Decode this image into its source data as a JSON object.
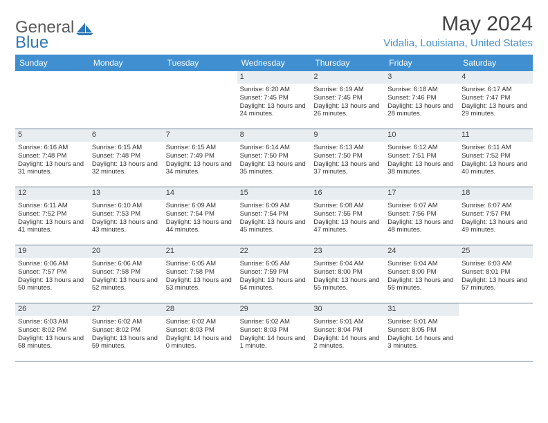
{
  "brand": {
    "text1": "General",
    "text2": "Blue"
  },
  "title": "May 2024",
  "location": "Vidalia, Louisiana, United States",
  "colors": {
    "header_bg": "#3f8fd1",
    "header_text": "#ffffff",
    "daynum_bg": "#e8edf1",
    "location_color": "#4a8fc7",
    "border": "#6b7d8c",
    "logo_gray": "#5a5a5a",
    "logo_blue": "#2e77b8"
  },
  "dayNames": [
    "Sunday",
    "Monday",
    "Tuesday",
    "Wednesday",
    "Thursday",
    "Friday",
    "Saturday"
  ],
  "startOffset": 3,
  "days": [
    {
      "n": 1,
      "sr": "6:20 AM",
      "ss": "7:45 PM",
      "dl": "13 hours and 24 minutes."
    },
    {
      "n": 2,
      "sr": "6:19 AM",
      "ss": "7:45 PM",
      "dl": "13 hours and 26 minutes."
    },
    {
      "n": 3,
      "sr": "6:18 AM",
      "ss": "7:46 PM",
      "dl": "13 hours and 28 minutes."
    },
    {
      "n": 4,
      "sr": "6:17 AM",
      "ss": "7:47 PM",
      "dl": "13 hours and 29 minutes."
    },
    {
      "n": 5,
      "sr": "6:16 AM",
      "ss": "7:48 PM",
      "dl": "13 hours and 31 minutes."
    },
    {
      "n": 6,
      "sr": "6:15 AM",
      "ss": "7:48 PM",
      "dl": "13 hours and 32 minutes."
    },
    {
      "n": 7,
      "sr": "6:15 AM",
      "ss": "7:49 PM",
      "dl": "13 hours and 34 minutes."
    },
    {
      "n": 8,
      "sr": "6:14 AM",
      "ss": "7:50 PM",
      "dl": "13 hours and 35 minutes."
    },
    {
      "n": 9,
      "sr": "6:13 AM",
      "ss": "7:50 PM",
      "dl": "13 hours and 37 minutes."
    },
    {
      "n": 10,
      "sr": "6:12 AM",
      "ss": "7:51 PM",
      "dl": "13 hours and 38 minutes."
    },
    {
      "n": 11,
      "sr": "6:11 AM",
      "ss": "7:52 PM",
      "dl": "13 hours and 40 minutes."
    },
    {
      "n": 12,
      "sr": "6:11 AM",
      "ss": "7:52 PM",
      "dl": "13 hours and 41 minutes."
    },
    {
      "n": 13,
      "sr": "6:10 AM",
      "ss": "7:53 PM",
      "dl": "13 hours and 43 minutes."
    },
    {
      "n": 14,
      "sr": "6:09 AM",
      "ss": "7:54 PM",
      "dl": "13 hours and 44 minutes."
    },
    {
      "n": 15,
      "sr": "6:09 AM",
      "ss": "7:54 PM",
      "dl": "13 hours and 45 minutes."
    },
    {
      "n": 16,
      "sr": "6:08 AM",
      "ss": "7:55 PM",
      "dl": "13 hours and 47 minutes."
    },
    {
      "n": 17,
      "sr": "6:07 AM",
      "ss": "7:56 PM",
      "dl": "13 hours and 48 minutes."
    },
    {
      "n": 18,
      "sr": "6:07 AM",
      "ss": "7:57 PM",
      "dl": "13 hours and 49 minutes."
    },
    {
      "n": 19,
      "sr": "6:06 AM",
      "ss": "7:57 PM",
      "dl": "13 hours and 50 minutes."
    },
    {
      "n": 20,
      "sr": "6:06 AM",
      "ss": "7:58 PM",
      "dl": "13 hours and 52 minutes."
    },
    {
      "n": 21,
      "sr": "6:05 AM",
      "ss": "7:58 PM",
      "dl": "13 hours and 53 minutes."
    },
    {
      "n": 22,
      "sr": "6:05 AM",
      "ss": "7:59 PM",
      "dl": "13 hours and 54 minutes."
    },
    {
      "n": 23,
      "sr": "6:04 AM",
      "ss": "8:00 PM",
      "dl": "13 hours and 55 minutes."
    },
    {
      "n": 24,
      "sr": "6:04 AM",
      "ss": "8:00 PM",
      "dl": "13 hours and 56 minutes."
    },
    {
      "n": 25,
      "sr": "6:03 AM",
      "ss": "8:01 PM",
      "dl": "13 hours and 57 minutes."
    },
    {
      "n": 26,
      "sr": "6:03 AM",
      "ss": "8:02 PM",
      "dl": "13 hours and 58 minutes."
    },
    {
      "n": 27,
      "sr": "6:02 AM",
      "ss": "8:02 PM",
      "dl": "13 hours and 59 minutes."
    },
    {
      "n": 28,
      "sr": "6:02 AM",
      "ss": "8:03 PM",
      "dl": "14 hours and 0 minutes."
    },
    {
      "n": 29,
      "sr": "6:02 AM",
      "ss": "8:03 PM",
      "dl": "14 hours and 1 minute."
    },
    {
      "n": 30,
      "sr": "6:01 AM",
      "ss": "8:04 PM",
      "dl": "14 hours and 2 minutes."
    },
    {
      "n": 31,
      "sr": "6:01 AM",
      "ss": "8:05 PM",
      "dl": "14 hours and 3 minutes."
    }
  ],
  "labels": {
    "sunrise": "Sunrise:",
    "sunset": "Sunset:",
    "daylight": "Daylight:"
  }
}
